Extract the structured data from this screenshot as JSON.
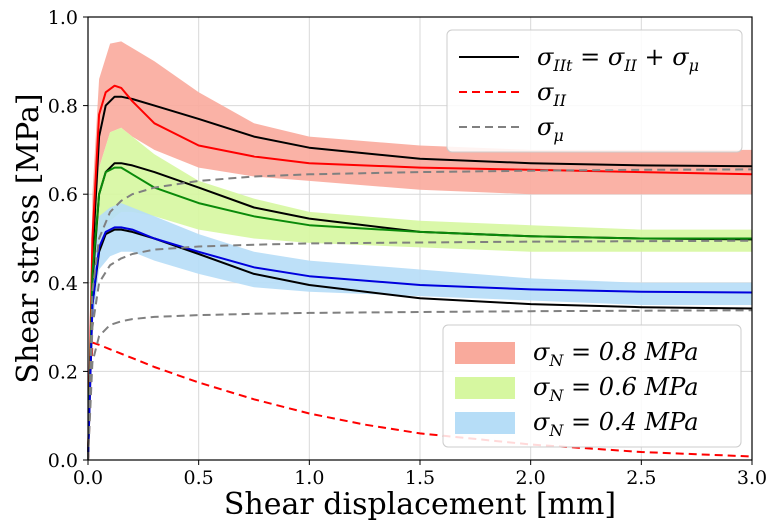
{
  "chart_data": {
    "type": "line",
    "xlabel": "Shear displacement [mm]",
    "ylabel": "Shear stress [MPa]",
    "xlim": [
      0.0,
      3.0
    ],
    "ylim": [
      0.0,
      1.0
    ],
    "x_ticks": [
      "0.0",
      "0.5",
      "1.0",
      "1.5",
      "2.0",
      "2.5",
      "3.0"
    ],
    "y_ticks": [
      "0.0",
      "0.2",
      "0.4",
      "0.6",
      "0.8",
      "1.0"
    ],
    "grid": true,
    "legends": [
      {
        "placement": "top-right",
        "entries": [
          {
            "label": "σ_{II_t} = σ_{II} + σ_μ",
            "color": "#000000",
            "style": "solid"
          },
          {
            "label": "σ_{II}",
            "color": "#ff0000",
            "style": "dashed"
          },
          {
            "label": "σ_μ",
            "color": "#808080",
            "style": "dashed"
          }
        ]
      },
      {
        "placement": "bottom-right",
        "entries": [
          {
            "label": "σ_N = 0.8 MPa",
            "color": "#f9aa9c",
            "style": "patch"
          },
          {
            "label": "σ_N = 0.6 MPa",
            "color": "#d6f7a0",
            "style": "patch"
          },
          {
            "label": "σ_N = 0.4 MPa",
            "color": "#b6ddf7",
            "style": "patch"
          }
        ]
      }
    ],
    "bands": [
      {
        "name": "σ_N = 0.8 MPa",
        "color": "#f9aa9c",
        "x": [
          0.0,
          0.02,
          0.05,
          0.1,
          0.15,
          0.2,
          0.3,
          0.5,
          0.75,
          1.0,
          1.5,
          2.0,
          2.5,
          3.0
        ],
        "lower": [
          0.0,
          0.42,
          0.66,
          0.74,
          0.75,
          0.73,
          0.7,
          0.66,
          0.64,
          0.63,
          0.61,
          0.6,
          0.6,
          0.6
        ],
        "upper": [
          0.0,
          0.6,
          0.86,
          0.94,
          0.945,
          0.93,
          0.9,
          0.83,
          0.76,
          0.73,
          0.71,
          0.7,
          0.7,
          0.7
        ]
      },
      {
        "name": "σ_N = 0.6 MPa",
        "color": "#d6f7a0",
        "x": [
          0.0,
          0.02,
          0.05,
          0.1,
          0.15,
          0.2,
          0.3,
          0.5,
          0.75,
          1.0,
          1.5,
          2.0,
          2.5,
          3.0
        ],
        "lower": [
          0.0,
          0.35,
          0.5,
          0.54,
          0.56,
          0.56,
          0.55,
          0.52,
          0.5,
          0.49,
          0.48,
          0.47,
          0.47,
          0.47
        ],
        "upper": [
          0.0,
          0.48,
          0.66,
          0.74,
          0.75,
          0.73,
          0.69,
          0.63,
          0.59,
          0.56,
          0.54,
          0.53,
          0.52,
          0.52
        ]
      },
      {
        "name": "σ_N = 0.4 MPa",
        "color": "#b6ddf7",
        "x": [
          0.0,
          0.02,
          0.05,
          0.1,
          0.15,
          0.2,
          0.3,
          0.5,
          0.75,
          1.0,
          1.5,
          2.0,
          2.5,
          3.0
        ],
        "lower": [
          0.0,
          0.3,
          0.43,
          0.46,
          0.47,
          0.47,
          0.45,
          0.42,
          0.39,
          0.38,
          0.37,
          0.36,
          0.35,
          0.35
        ],
        "upper": [
          0.0,
          0.4,
          0.55,
          0.57,
          0.58,
          0.57,
          0.55,
          0.51,
          0.47,
          0.45,
          0.43,
          0.41,
          0.4,
          0.4
        ]
      }
    ],
    "series": [
      {
        "name": "σ_{II_t} = σ_{II} + σ_μ",
        "group": "σ_N = 0.8 MPa",
        "color": "#000000",
        "style": "solid",
        "x": [
          0.0,
          0.02,
          0.05,
          0.08,
          0.12,
          0.15,
          0.2,
          0.3,
          0.5,
          0.75,
          1.0,
          1.5,
          2.0,
          2.5,
          3.0
        ],
        "y": [
          0.0,
          0.45,
          0.73,
          0.8,
          0.82,
          0.82,
          0.815,
          0.8,
          0.77,
          0.73,
          0.705,
          0.68,
          0.67,
          0.665,
          0.663
        ]
      },
      {
        "name": "σ_{II_t} = σ_{II} + σ_μ",
        "group": "σ_N = 0.6 MPa",
        "color": "#000000",
        "style": "solid",
        "x": [
          0.0,
          0.02,
          0.05,
          0.08,
          0.12,
          0.15,
          0.2,
          0.3,
          0.5,
          0.75,
          1.0,
          1.5,
          2.0,
          2.5,
          3.0
        ],
        "y": [
          0.0,
          0.4,
          0.6,
          0.65,
          0.67,
          0.67,
          0.665,
          0.65,
          0.615,
          0.57,
          0.545,
          0.515,
          0.505,
          0.5,
          0.498
        ]
      },
      {
        "name": "σ_{II_t} = σ_{II} + σ_μ",
        "group": "σ_N = 0.4 MPa",
        "color": "#000000",
        "style": "solid",
        "x": [
          0.0,
          0.02,
          0.05,
          0.08,
          0.12,
          0.15,
          0.2,
          0.3,
          0.5,
          0.75,
          1.0,
          1.5,
          2.0,
          2.5,
          3.0
        ],
        "y": [
          0.0,
          0.35,
          0.47,
          0.51,
          0.52,
          0.52,
          0.515,
          0.5,
          0.465,
          0.42,
          0.395,
          0.365,
          0.352,
          0.345,
          0.342
        ]
      },
      {
        "name": "σ_N = 0.8 MPa",
        "color": "#ff0000",
        "style": "solid",
        "x": [
          0.0,
          0.02,
          0.05,
          0.08,
          0.12,
          0.15,
          0.2,
          0.3,
          0.5,
          0.75,
          1.0,
          1.5,
          2.0,
          2.5,
          3.0
        ],
        "y": [
          0.0,
          0.5,
          0.78,
          0.83,
          0.845,
          0.84,
          0.81,
          0.76,
          0.71,
          0.685,
          0.67,
          0.66,
          0.655,
          0.65,
          0.645
        ]
      },
      {
        "name": "σ_N = 0.6 MPa",
        "color": "#0a8a0a",
        "style": "solid",
        "x": [
          0.0,
          0.02,
          0.05,
          0.08,
          0.12,
          0.15,
          0.2,
          0.3,
          0.5,
          0.75,
          1.0,
          1.5,
          2.0,
          2.5,
          3.0
        ],
        "y": [
          0.0,
          0.42,
          0.6,
          0.65,
          0.66,
          0.66,
          0.645,
          0.615,
          0.58,
          0.55,
          0.53,
          0.515,
          0.505,
          0.5,
          0.5
        ]
      },
      {
        "name": "σ_N = 0.4 MPa",
        "color": "#0000dd",
        "style": "solid",
        "x": [
          0.0,
          0.02,
          0.05,
          0.08,
          0.12,
          0.15,
          0.2,
          0.3,
          0.5,
          0.75,
          1.0,
          1.5,
          2.0,
          2.5,
          3.0
        ],
        "y": [
          0.0,
          0.35,
          0.48,
          0.515,
          0.525,
          0.525,
          0.52,
          0.5,
          0.47,
          0.435,
          0.415,
          0.395,
          0.385,
          0.38,
          0.378
        ]
      },
      {
        "name": "σ_{II}",
        "color": "#ff0000",
        "style": "dashed",
        "x": [
          0.0,
          0.02,
          0.05,
          0.1,
          0.2,
          0.3,
          0.5,
          0.75,
          1.0,
          1.25,
          1.5,
          2.0,
          2.5,
          3.0
        ],
        "y": [
          0.0,
          0.265,
          0.26,
          0.25,
          0.23,
          0.21,
          0.175,
          0.137,
          0.105,
          0.08,
          0.06,
          0.035,
          0.018,
          0.008
        ]
      },
      {
        "name": "σ_μ",
        "group": "σ_N = 0.8 MPa",
        "color": "#808080",
        "style": "dashed",
        "x": [
          0.0,
          0.02,
          0.05,
          0.1,
          0.15,
          0.2,
          0.3,
          0.5,
          0.75,
          1.0,
          1.5,
          2.0,
          2.5,
          3.0
        ],
        "y": [
          0.0,
          0.38,
          0.5,
          0.56,
          0.585,
          0.6,
          0.615,
          0.63,
          0.64,
          0.645,
          0.65,
          0.653,
          0.655,
          0.656
        ]
      },
      {
        "name": "σ_μ",
        "group": "σ_N = 0.6 MPa",
        "color": "#808080",
        "style": "dashed",
        "x": [
          0.0,
          0.02,
          0.05,
          0.1,
          0.15,
          0.2,
          0.3,
          0.5,
          0.75,
          1.0,
          1.5,
          2.0,
          2.5,
          3.0
        ],
        "y": [
          0.0,
          0.3,
          0.4,
          0.44,
          0.455,
          0.465,
          0.475,
          0.482,
          0.486,
          0.489,
          0.491,
          0.493,
          0.494,
          0.495
        ]
      },
      {
        "name": "σ_μ",
        "group": "σ_N = 0.4 MPa",
        "color": "#808080",
        "style": "dashed",
        "x": [
          0.0,
          0.02,
          0.05,
          0.1,
          0.15,
          0.2,
          0.3,
          0.5,
          0.75,
          1.0,
          1.5,
          2.0,
          2.5,
          3.0
        ],
        "y": [
          0.0,
          0.22,
          0.28,
          0.305,
          0.313,
          0.318,
          0.323,
          0.327,
          0.33,
          0.332,
          0.334,
          0.336,
          0.337,
          0.338
        ]
      }
    ]
  }
}
